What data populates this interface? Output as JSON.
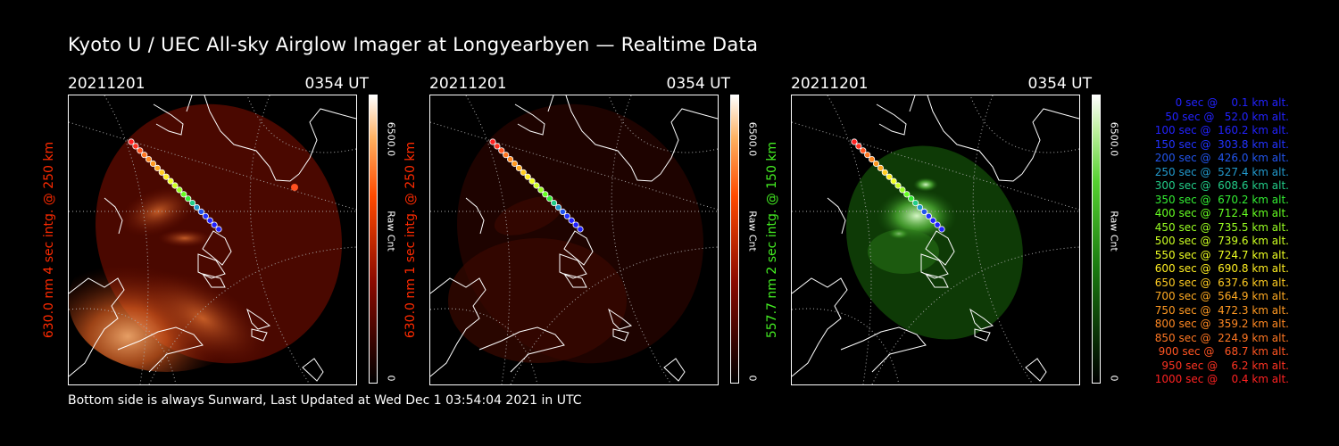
{
  "title": "Kyoto U / UEC All-sky Airglow Imager at Longyearbyen — Realtime Data",
  "panels": [
    {
      "date": "20211201",
      "time": "0354 UT",
      "ylabel": "630.0 nm 4 sec intg. @ 250 km",
      "label_color": "#ff2a00",
      "cbar_max": "6500.0",
      "cbar_unit": "Raw Cnt",
      "cbar_min": "0",
      "colormap": "red-hot"
    },
    {
      "date": "20211201",
      "time": "0354 UT",
      "ylabel": "630.0 nm 1 sec intg. @ 250 km",
      "label_color": "#ff2a00",
      "cbar_max": "6500.0",
      "cbar_unit": "Raw Cnt",
      "cbar_min": "0",
      "colormap": "red-hot"
    },
    {
      "date": "20211201",
      "time": "0354 UT",
      "ylabel": "557.7 nm 2 sec intg. @ 150 km",
      "label_color": "#44ee22",
      "cbar_max": "6500.0",
      "cbar_unit": "Raw Cnt",
      "cbar_min": "0",
      "colormap": "green"
    }
  ],
  "footer": "Bottom side is always Sunward, Last Updated at Wed Dec  1 03:54:04 2021 in UTC",
  "legend": [
    {
      "text": "   0 sec @    0.1 km alt.",
      "color": "#2222ff"
    },
    {
      "text": "  50 sec @   52.0 km alt.",
      "color": "#2222ff"
    },
    {
      "text": " 100 sec @  160.2 km alt.",
      "color": "#2222ff"
    },
    {
      "text": " 150 sec @  303.8 km alt.",
      "color": "#2233ff"
    },
    {
      "text": " 200 sec @  426.0 km alt.",
      "color": "#2255ee"
    },
    {
      "text": " 250 sec @  527.4 km alt.",
      "color": "#2299cc"
    },
    {
      "text": " 300 sec @  608.6 km alt.",
      "color": "#22cc88"
    },
    {
      "text": " 350 sec @  670.2 km alt.",
      "color": "#33ee33"
    },
    {
      "text": " 400 sec @  712.4 km alt.",
      "color": "#66ff22"
    },
    {
      "text": " 450 sec @  735.5 km alt.",
      "color": "#99ff22"
    },
    {
      "text": " 500 sec @  739.6 km alt.",
      "color": "#ccff22"
    },
    {
      "text": " 550 sec @  724.7 km alt.",
      "color": "#eeff22"
    },
    {
      "text": " 600 sec @  690.8 km alt.",
      "color": "#ffee22"
    },
    {
      "text": " 650 sec @  637.6 km alt.",
      "color": "#ffcc22"
    },
    {
      "text": " 700 sec @  564.9 km alt.",
      "color": "#ffaa22"
    },
    {
      "text": " 750 sec @  472.3 km alt.",
      "color": "#ff9922"
    },
    {
      "text": " 800 sec @  359.2 km alt.",
      "color": "#ff8822"
    },
    {
      "text": " 850 sec @  224.9 km alt.",
      "color": "#ff7722"
    },
    {
      "text": " 900 sec @   68.7 km alt.",
      "color": "#ff5522"
    },
    {
      "text": " 950 sec @    6.2 km alt.",
      "color": "#ff3322"
    },
    {
      "text": "1000 sec @    0.4 km alt.",
      "color": "#ff2222"
    }
  ]
}
